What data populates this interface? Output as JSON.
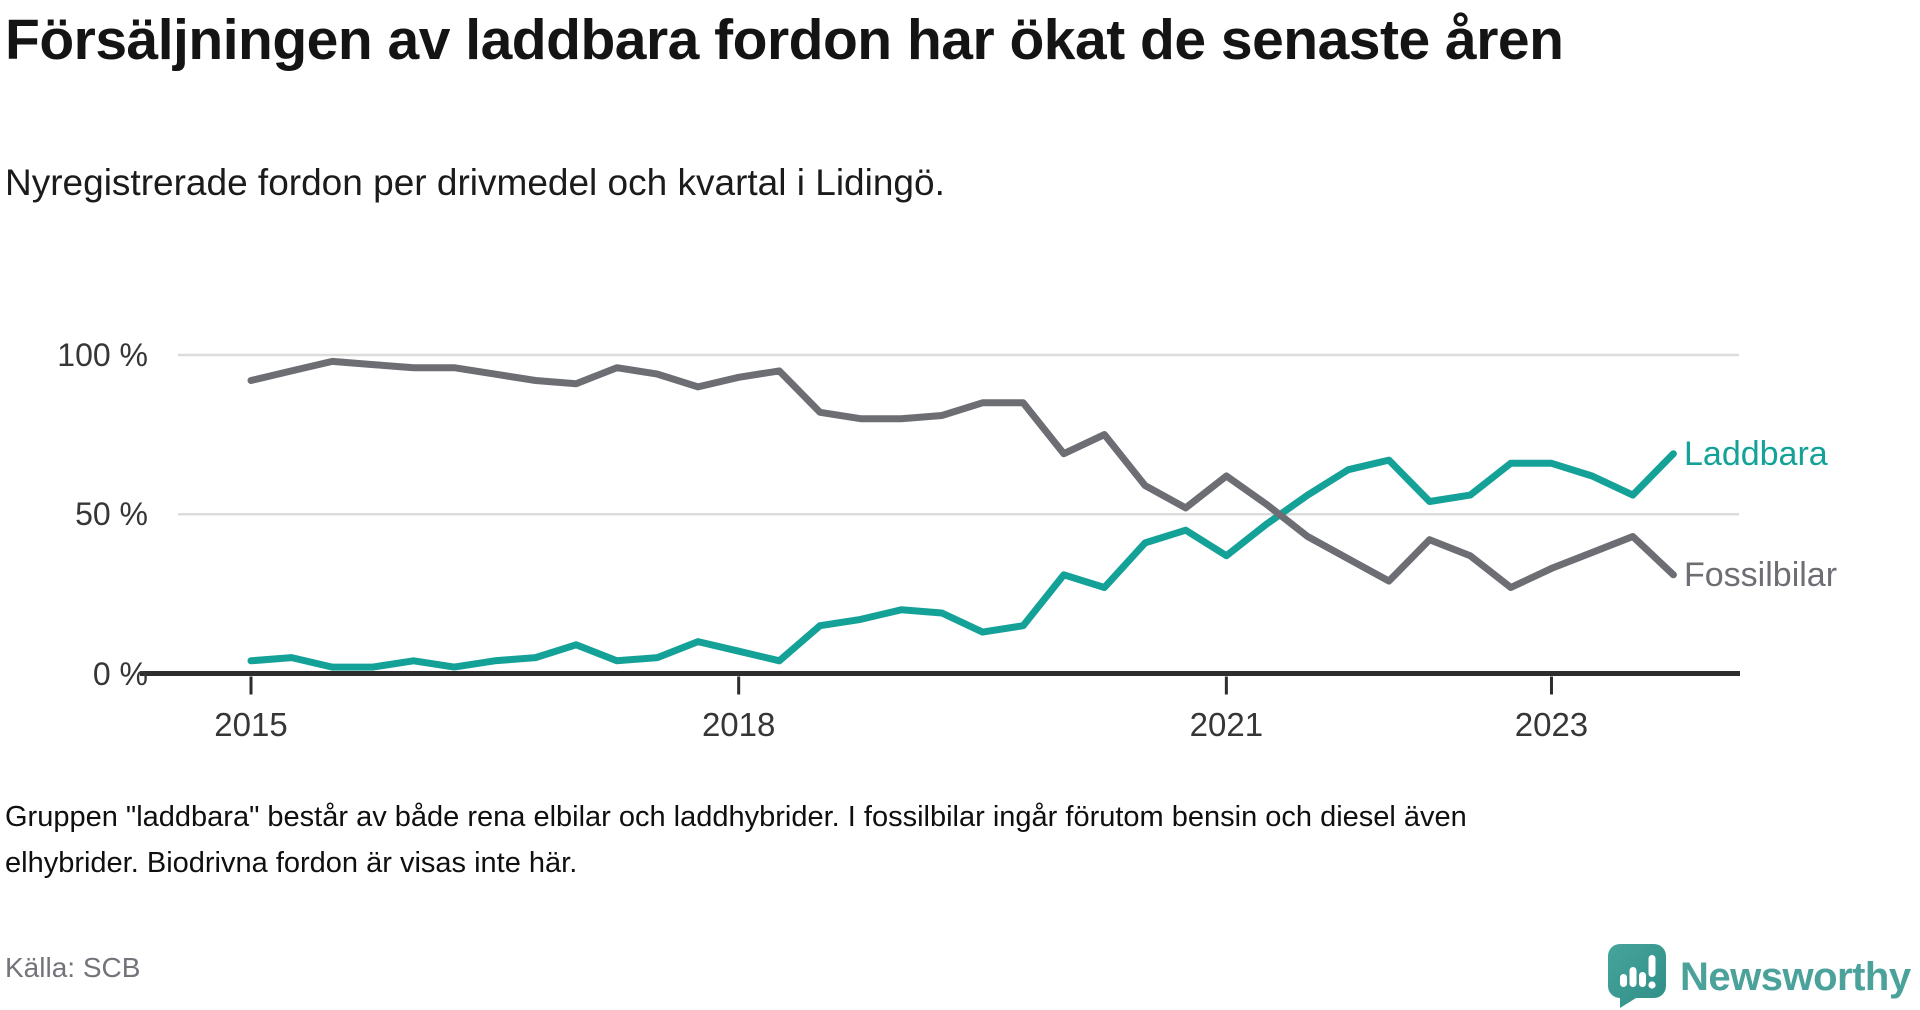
{
  "title": "Försäljningen av laddbara fordon har ökat de senaste åren",
  "subtitle": "Nyregistrerade fordon per drivmedel och kvartal i Lidingö.",
  "footnote": [
    "Gruppen \"laddbara\" består av både rena elbilar och laddhybrider. I fossilbilar ingår förutom bensin och diesel även",
    "elhybrider. Biodrivna fordon är visas inte här."
  ],
  "source": "Källa: SCB",
  "brand": {
    "name": "Newsworthy",
    "icon": "bar-chart-bubble-icon",
    "text_color": "#4aa29a",
    "mark_color_top": "#46a49c",
    "mark_color_bottom": "#2f8e86"
  },
  "chart_data": {
    "type": "line",
    "title": "Försäljningen av laddbara fordon har ökat de senaste åren",
    "xlabel": "",
    "ylabel": "",
    "x_start": "2015 Q1",
    "x_end": "2023 Q4",
    "frequency": "quarterly",
    "ylim": [
      0,
      100
    ],
    "grid": "horizontal",
    "legend_position": "end-of-line-labels",
    "y_axis": {
      "gridline_values": [
        50,
        100
      ],
      "ticks": [
        {
          "value": 0,
          "label": "0 %"
        },
        {
          "value": 50,
          "label": "50 %"
        },
        {
          "value": 100,
          "label": "100 %"
        }
      ]
    },
    "x_axis": {
      "ticks": [
        {
          "label": "2015",
          "quarter_index": 0
        },
        {
          "label": "2018",
          "quarter_index": 12
        },
        {
          "label": "2021",
          "quarter_index": 24
        },
        {
          "label": "2023",
          "quarter_index": 32
        }
      ]
    },
    "style": {
      "grid_color": "#dcdcdc",
      "axis_color": "#2d2d2d",
      "line_width": 7
    },
    "series": [
      {
        "name": "Laddbara",
        "color": "#14a298",
        "values": [
          4,
          5,
          2,
          2,
          4,
          2,
          4,
          5,
          9,
          4,
          5,
          10,
          7,
          4,
          15,
          17,
          20,
          19,
          13,
          15,
          31,
          27,
          41,
          45,
          37,
          47,
          56,
          64,
          67,
          54,
          56,
          66,
          66,
          62,
          56,
          69
        ]
      },
      {
        "name": "Fossilbilar",
        "color": "#6d6d74",
        "values": [
          92,
          95,
          98,
          97,
          96,
          96,
          94,
          92,
          91,
          96,
          94,
          90,
          93,
          95,
          82,
          80,
          80,
          81,
          85,
          85,
          69,
          75,
          59,
          52,
          62,
          53,
          43,
          36,
          29,
          42,
          37,
          27,
          33,
          38,
          43,
          31
        ]
      }
    ]
  }
}
